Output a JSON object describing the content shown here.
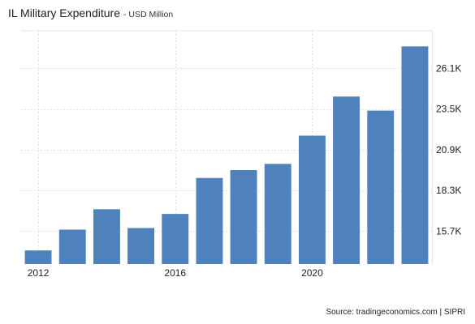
{
  "title": "IL Military Expenditure",
  "subtitle": "- USD Million",
  "source": "Source: tradingeconomics.com | SIPRI",
  "bar_color": "#4F81BD",
  "chart_data": {
    "type": "bar",
    "title": "IL Military Expenditure",
    "subtitle": "- USD Million",
    "categories": [
      "2012",
      "2013",
      "2014",
      "2015",
      "2016",
      "2017",
      "2018",
      "2019",
      "2020",
      "2021",
      "2022",
      "2023"
    ],
    "values": [
      14.47,
      15.8,
      17.1,
      15.9,
      16.8,
      19.1,
      19.6,
      20.0,
      21.8,
      24.3,
      23.4,
      27.5
    ],
    "x_tick_labels": [
      {
        "index": 0,
        "label": "2012"
      },
      {
        "index": 4,
        "label": "2016"
      },
      {
        "index": 8,
        "label": "2020"
      }
    ],
    "y_ticks": [
      15.7,
      18.3,
      20.9,
      23.5,
      26.1
    ],
    "y_tick_labels": [
      "15.7K",
      "18.3K",
      "20.9K",
      "23.5K",
      "26.1K"
    ],
    "ylim": [
      13.6,
      28.5
    ],
    "y_axis_side": "right",
    "grid": true,
    "legend": "none"
  }
}
